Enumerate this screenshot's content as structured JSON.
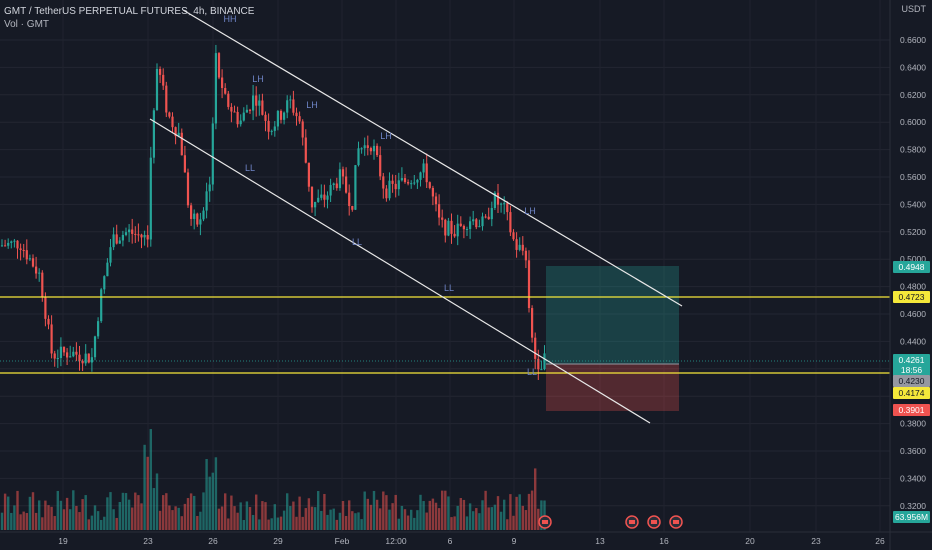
{
  "header": {
    "title": "GMT / TetherUS PERPETUAL FUTURES, 4h, BINANCE",
    "volume_label": "Vol · GMT"
  },
  "axis": {
    "currency": "USDT",
    "price_ticks": [
      "0.6600",
      "0.6400",
      "0.6200",
      "0.6000",
      "0.5800",
      "0.5600",
      "0.5400",
      "0.5200",
      "0.5000",
      "0.4800",
      "0.4600",
      "0.4400",
      "0.4200",
      "0.4000",
      "0.3800",
      "0.3600",
      "0.3400",
      "0.3200"
    ],
    "time_ticks": [
      "19",
      "23",
      "26",
      "29",
      "Feb",
      "12:00",
      "6",
      "9",
      "13",
      "16",
      "20",
      "23",
      "26"
    ]
  },
  "price_badges": [
    {
      "label": "0.4948",
      "color": "#26a69a",
      "text_color": "#ffffff"
    },
    {
      "label": "0.4723",
      "color": "#f5e83a",
      "text_color": "#131722"
    },
    {
      "label": "0.4261",
      "color": "#26a69a",
      "text_color": "#ffffff"
    },
    {
      "label": "18:56",
      "color": "#26a69a",
      "text_color": "#ffffff"
    },
    {
      "label": "0.4230",
      "color": "#9598a1",
      "text_color": "#131722"
    },
    {
      "label": "0.4174",
      "color": "#f5e83a",
      "text_color": "#131722"
    },
    {
      "label": "0.3901",
      "color": "#ef5350",
      "text_color": "#ffffff"
    },
    {
      "label": "63.956M",
      "color": "#26a69a",
      "text_color": "#ffffff"
    }
  ],
  "annotations": [
    "HH",
    "LH",
    "LH",
    "LH",
    "LL",
    "LL",
    "LH",
    "LL",
    "LL"
  ],
  "colors": {
    "background": "#161a25",
    "up": "#26a69a",
    "down": "#ef5350",
    "channel": "#e8e8e8",
    "level": "#f5e83a"
  }
}
